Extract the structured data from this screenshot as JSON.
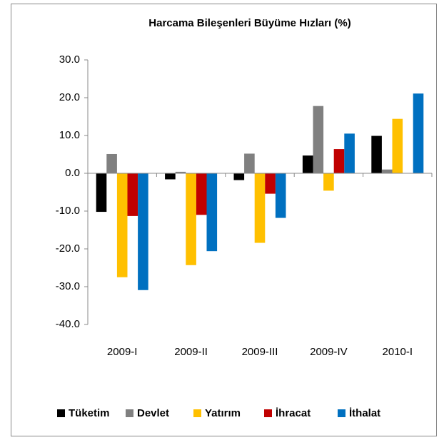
{
  "chart_data": {
    "type": "bar",
    "title": "Harcama Bileşenleri  Büyüme Hızları (%)",
    "categories": [
      "2009-I",
      "2009-II",
      "2009-III",
      "2009-IV",
      "2010-I"
    ],
    "series": [
      {
        "name": "Tüketim",
        "color": "#000000",
        "values": [
          -10.2,
          -1.6,
          -1.8,
          4.7,
          9.9
        ]
      },
      {
        "name": "Devlet",
        "color": "#808080",
        "values": [
          5.1,
          0.4,
          5.2,
          17.8,
          1.0
        ]
      },
      {
        "name": "Yatırım",
        "color": "#ffc000",
        "values": [
          -27.5,
          -24.3,
          -18.4,
          -4.6,
          14.4
        ]
      },
      {
        "name": "İhracat",
        "color": "#c00000",
        "values": [
          -11.3,
          -11.0,
          -5.4,
          6.4,
          null
        ]
      },
      {
        "name": "İthalat",
        "color": "#0070c0",
        "values": [
          -30.9,
          -20.6,
          -11.8,
          10.5,
          21.1
        ]
      }
    ],
    "ylim": [
      -40,
      30
    ],
    "yticks": [
      {
        "value": -40,
        "label": "-40.0"
      },
      {
        "value": -30,
        "label": "-30.0"
      },
      {
        "value": -20,
        "label": "-20.0"
      },
      {
        "value": -10,
        "label": "-10.0"
      },
      {
        "value": 0,
        "label": "0.0"
      },
      {
        "value": 10,
        "label": "10.0"
      },
      {
        "value": 20,
        "label": "20.0"
      },
      {
        "value": 30,
        "label": "30.0"
      }
    ],
    "legend": "bottom"
  }
}
